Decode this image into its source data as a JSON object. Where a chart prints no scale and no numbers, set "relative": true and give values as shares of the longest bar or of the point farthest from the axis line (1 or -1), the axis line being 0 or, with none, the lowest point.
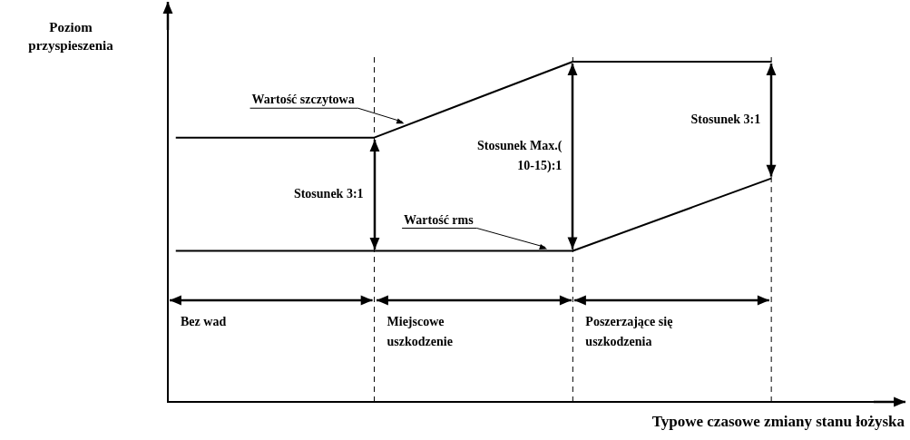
{
  "chart_data": {
    "type": "line",
    "relative": true,
    "xlabel": "Typowe czasowe zmiany stanu łożyska",
    "ylabel": "Poziom przyspieszenia",
    "categories": [
      null,
      null,
      null,
      null
    ],
    "series": [
      {
        "name": "Wartość szczytowa",
        "color": "#000000",
        "values": [
          0.777,
          0.777,
          1,
          1
        ]
      },
      {
        "name": "Wartość rms",
        "color": "#000000",
        "values": [
          0.444,
          0.444,
          0.444,
          0.657
        ]
      }
    ],
    "annotations": [
      "Stosunek 3:1",
      "Stosunek Max.( 10-15):1",
      "Stosunek 3:1",
      "Bez wad",
      "Miejscowe uszkodzenie",
      "Poszerzające się uszkodzenia"
    ],
    "marker": "none",
    "line_style": "solid",
    "tick_labels": false,
    "grid": "x",
    "legend": false
  }
}
